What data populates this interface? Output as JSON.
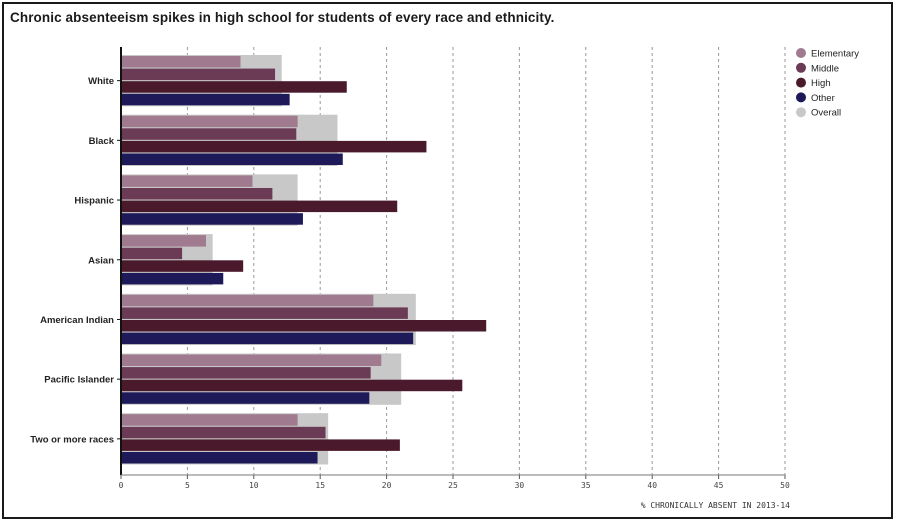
{
  "chart_data": {
    "type": "bar",
    "orientation": "horizontal",
    "title": "Chronic absenteeism spikes in high school for students of every race and ethnicity.",
    "xlabel": "% CHRONICALLY ABSENT IN 2013-14",
    "xlim": [
      0,
      50
    ],
    "xticks": [
      0,
      5,
      10,
      15,
      20,
      25,
      30,
      35,
      40,
      45,
      50
    ],
    "grid": "vertical-dashed",
    "legend_position": "top-right",
    "categories": [
      "White",
      "Black",
      "Hispanic",
      "Asian",
      "American Indian",
      "Pacific Islander",
      "Two or more races"
    ],
    "series": [
      {
        "name": "Elementary",
        "color": "#a07a8e",
        "values": [
          9.0,
          13.3,
          9.9,
          6.4,
          19.0,
          19.6,
          13.3
        ]
      },
      {
        "name": "Middle",
        "color": "#6b3a55",
        "values": [
          11.6,
          13.2,
          11.4,
          4.6,
          21.6,
          18.8,
          15.4
        ]
      },
      {
        "name": "High",
        "color": "#4a1a2c",
        "values": [
          17.0,
          23.0,
          20.8,
          9.2,
          27.5,
          25.7,
          21.0
        ]
      },
      {
        "name": "Other",
        "color": "#1e1a5a",
        "values": [
          12.7,
          16.7,
          13.7,
          7.7,
          22.0,
          18.7,
          14.8
        ]
      },
      {
        "name": "Overall",
        "color": "#c8c8c8",
        "values": [
          12.1,
          16.3,
          13.3,
          6.9,
          22.2,
          21.1,
          15.6
        ]
      }
    ]
  }
}
